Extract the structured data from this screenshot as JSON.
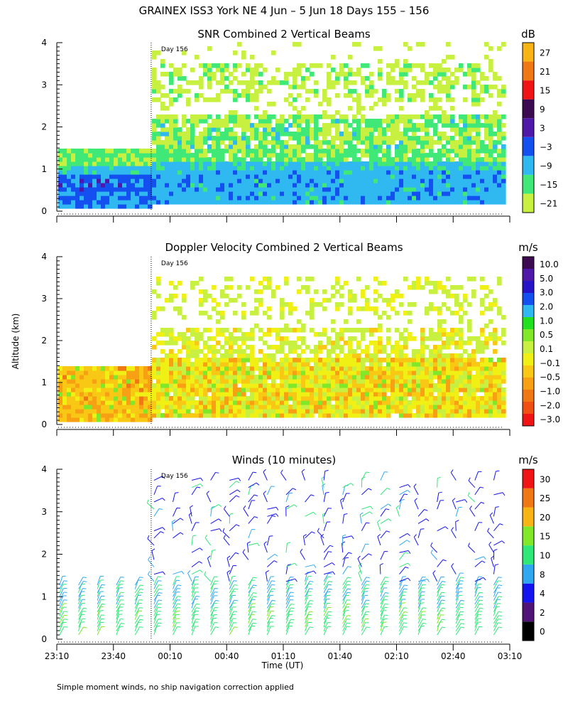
{
  "figure": {
    "title": "GRAINEX ISS3 York NE    4 Jun –  5 Jun 18 Days 155 – 156",
    "footer_note": "Simple moment winds, no ship navigation correction applied",
    "ylabel": "Altitude (km)",
    "xlabel": "Time (UT)",
    "x_tick_labels": [
      "23:10",
      "23:40",
      "00:10",
      "00:40",
      "01:10",
      "01:40",
      "02:10",
      "02:40",
      "03:10"
    ],
    "y_tick_labels": [
      "0",
      "1",
      "2",
      "3",
      "4"
    ],
    "day_marker": "Day 156"
  },
  "colors": {
    "snr_scale": [
      "#c8f040",
      "#40e878",
      "#30b8f0",
      "#1450f0",
      "#5018a8",
      "#3c0a50",
      "#f01414",
      "#f07814",
      "#f8b414"
    ],
    "vel_scale": [
      "#f01414",
      "#f05014",
      "#f07814",
      "#f8a014",
      "#f8c814",
      "#f0f014",
      "#c8f040",
      "#80e828",
      "#20e020",
      "#30b8f0",
      "#1450f0",
      "#2814c8",
      "#5018a8",
      "#3c0a50"
    ],
    "wind_scale": [
      "#000000",
      "#501478",
      "#1414f0",
      "#30a8f0",
      "#30e878",
      "#80e828",
      "#f8b414",
      "#f07814",
      "#f01414"
    ]
  },
  "chart_data": [
    {
      "type": "heatmap",
      "title": "SNR Combined 2 Vertical Beams",
      "unit": "dB",
      "xlabel": "",
      "ylabel": "Altitude (km)",
      "x_range": [
        "23:10",
        "03:10"
      ],
      "ylim": [
        0,
        4
      ],
      "colorbar_labels": [
        "27",
        "21",
        "15",
        "9",
        "3",
        "−3",
        "−9",
        "−15",
        "−21"
      ],
      "layers": [
        {
          "label": "-3 to 3",
          "from": "23:10",
          "to": "03:10",
          "alt_range": [
            0.5,
            0.8
          ]
        },
        {
          "label": "-9 to -3",
          "from": "23:10",
          "to": "03:10",
          "alt_range": [
            0.1,
            1.1
          ]
        },
        {
          "label": "-15 to -9",
          "from": "23:10",
          "to": "03:10",
          "alt_range": [
            0.1,
            1.4
          ]
        },
        {
          "label": "-21 to -15",
          "from": "00:10",
          "to": "03:10",
          "alt_range": [
            1.4,
            2.2
          ]
        },
        {
          "label": "-21 to -15",
          "from": "00:10",
          "to": "03:10",
          "alt_range": [
            2.5,
            3.5
          ]
        }
      ]
    },
    {
      "type": "heatmap",
      "title": "Doppler Velocity Combined 2 Vertical Beams",
      "unit": "m/s",
      "xlabel": "",
      "ylabel": "Altitude (km)",
      "x_range": [
        "23:10",
        "03:10"
      ],
      "ylim": [
        0,
        4
      ],
      "colorbar_labels": [
        "10.0",
        "5.0",
        "3.0",
        "2.0",
        "1.0",
        "0.5",
        "0.1",
        "−0.1",
        "−0.5",
        "−1.0",
        "−2.0",
        "−3.0"
      ],
      "layers": [
        {
          "label": "-1.0 to -0.1",
          "from": "23:10",
          "to": "03:10",
          "alt_range": [
            0.1,
            1.4
          ]
        },
        {
          "label": "-0.1 to 0.5",
          "from": "00:10",
          "to": "03:10",
          "alt_range": [
            1.4,
            2.3
          ]
        },
        {
          "label": "-0.1 to 0.5",
          "from": "00:10",
          "to": "03:10",
          "alt_range": [
            2.6,
            3.5
          ]
        }
      ]
    },
    {
      "type": "scatter",
      "title": "Winds (10 minutes)",
      "unit": "m/s",
      "xlabel": "Time (UT)",
      "ylabel": "Altitude (km)",
      "x_range": [
        "23:10",
        "03:10"
      ],
      "ylim": [
        0,
        4
      ],
      "colorbar_labels": [
        "30",
        "25",
        "20",
        "15",
        "10",
        "8",
        "4",
        "2",
        "0"
      ],
      "profile_times": [
        "23:10",
        "23:20",
        "23:30",
        "23:40",
        "23:50",
        "00:00",
        "00:10",
        "00:20",
        "00:30",
        "00:40",
        "00:50",
        "01:00",
        "01:10",
        "01:20",
        "01:30",
        "01:40",
        "01:50",
        "02:00",
        "02:10",
        "02:20",
        "02:30",
        "02:40",
        "02:50",
        "03:00"
      ]
    }
  ]
}
